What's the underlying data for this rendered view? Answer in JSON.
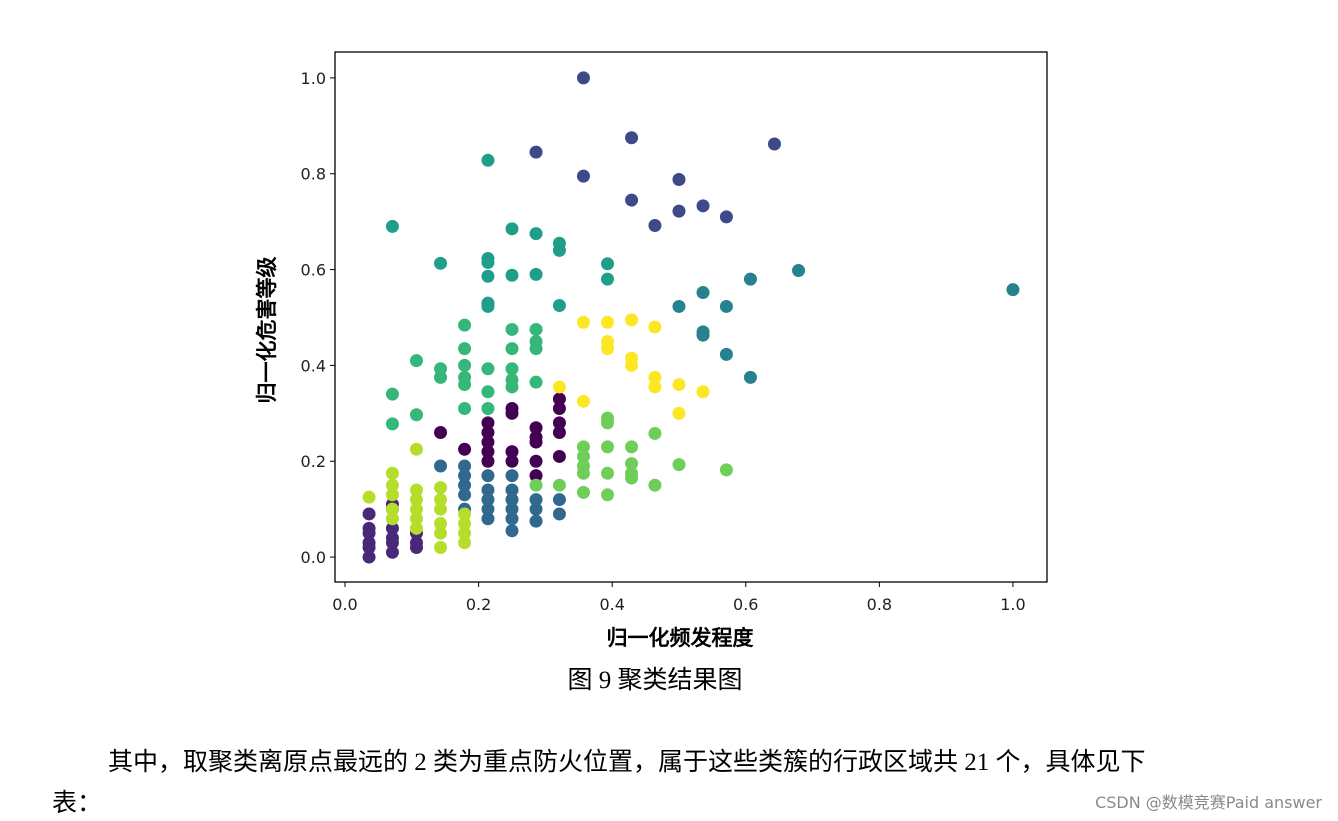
{
  "chart_data": {
    "type": "scatter",
    "xlabel": "归一化频发程度",
    "ylabel": "归一化危害等级",
    "xlim": [
      -0.015,
      1.051
    ],
    "ylim": [
      -0.052,
      1.054
    ],
    "xticks": [
      {
        "value": 0,
        "label": "0.0"
      },
      0.2,
      0.4,
      0.6,
      0.8,
      {
        "value": 1,
        "label": "1.0"
      }
    ],
    "yticks": [
      {
        "value": 0,
        "label": "0.0"
      },
      0.2,
      0.4,
      0.6,
      0.8,
      {
        "value": 1,
        "label": "1.0"
      }
    ],
    "series": [
      {
        "color": "#440154",
        "x": [
          0.143,
          0.179,
          0.214,
          0.214,
          0.214,
          0.214,
          0.214,
          0.25,
          0.25,
          0.25,
          0.25,
          0.286,
          0.286,
          0.286,
          0.286,
          0.286,
          0.321,
          0.321,
          0.321,
          0.321,
          0.321
        ],
        "values": [
          0.26,
          0.225,
          0.28,
          0.26,
          0.24,
          0.22,
          0.2,
          0.31,
          0.3,
          0.22,
          0.2,
          0.27,
          0.25,
          0.24,
          0.2,
          0.17,
          0.33,
          0.31,
          0.28,
          0.26,
          0.21
        ]
      },
      {
        "color": "#482878",
        "x": [
          0.036,
          0.036,
          0.036,
          0.036,
          0.036,
          0.036,
          0.071,
          0.071,
          0.071,
          0.071,
          0.071,
          0.071,
          0.107,
          0.107,
          0.107
        ],
        "values": [
          0.0,
          0.02,
          0.03,
          0.05,
          0.06,
          0.09,
          0.01,
          0.03,
          0.04,
          0.06,
          0.1,
          0.11,
          0.02,
          0.03,
          0.05
        ]
      },
      {
        "color": "#3e4989",
        "x": [
          0.357,
          0.286,
          0.357,
          0.429,
          0.429,
          0.464,
          0.5,
          0.5,
          0.536,
          0.571,
          0.643
        ],
        "values": [
          1.0,
          0.845,
          0.795,
          0.875,
          0.745,
          0.692,
          0.788,
          0.722,
          0.733,
          0.71,
          0.862
        ]
      },
      {
        "color": "#31688e",
        "x": [
          0.143,
          0.179,
          0.179,
          0.179,
          0.179,
          0.179,
          0.214,
          0.214,
          0.214,
          0.214,
          0.214,
          0.25,
          0.25,
          0.25,
          0.25,
          0.25,
          0.25,
          0.286,
          0.286,
          0.286,
          0.321,
          0.321
        ],
        "values": [
          0.19,
          0.19,
          0.17,
          0.15,
          0.13,
          0.1,
          0.17,
          0.14,
          0.12,
          0.1,
          0.08,
          0.17,
          0.14,
          0.12,
          0.1,
          0.08,
          0.055,
          0.12,
          0.1,
          0.075,
          0.12,
          0.09
        ]
      },
      {
        "color": "#26828e",
        "x": [
          0.5,
          0.536,
          0.536,
          0.536,
          0.571,
          0.571,
          0.607,
          0.607,
          0.679,
          1.0
        ],
        "values": [
          0.523,
          0.552,
          0.47,
          0.463,
          0.523,
          0.423,
          0.58,
          0.375,
          0.598,
          0.558
        ]
      },
      {
        "color": "#1f9e89",
        "x": [
          0.071,
          0.143,
          0.214,
          0.214,
          0.214,
          0.214,
          0.214,
          0.214,
          0.25,
          0.25,
          0.286,
          0.286,
          0.321,
          0.321,
          0.321,
          0.393,
          0.393
        ],
        "values": [
          0.69,
          0.613,
          0.828,
          0.623,
          0.615,
          0.586,
          0.53,
          0.523,
          0.685,
          0.588,
          0.675,
          0.59,
          0.655,
          0.64,
          0.525,
          0.612,
          0.58
        ]
      },
      {
        "color": "#35b779",
        "x": [
          0.071,
          0.071,
          0.107,
          0.107,
          0.143,
          0.143,
          0.179,
          0.179,
          0.179,
          0.179,
          0.179,
          0.179,
          0.214,
          0.214,
          0.214,
          0.25,
          0.25,
          0.25,
          0.25,
          0.25,
          0.286,
          0.286,
          0.286,
          0.286
        ],
        "values": [
          0.34,
          0.278,
          0.41,
          0.297,
          0.393,
          0.375,
          0.484,
          0.435,
          0.4,
          0.375,
          0.36,
          0.31,
          0.393,
          0.345,
          0.31,
          0.475,
          0.435,
          0.393,
          0.37,
          0.355,
          0.475,
          0.45,
          0.435,
          0.365
        ]
      },
      {
        "color": "#6ece58",
        "x": [
          0.286,
          0.321,
          0.357,
          0.357,
          0.357,
          0.357,
          0.357,
          0.393,
          0.393,
          0.393,
          0.393,
          0.393,
          0.429,
          0.429,
          0.429,
          0.429,
          0.464,
          0.464,
          0.5,
          0.571
        ],
        "values": [
          0.15,
          0.15,
          0.23,
          0.21,
          0.19,
          0.175,
          0.135,
          0.29,
          0.28,
          0.23,
          0.175,
          0.13,
          0.23,
          0.195,
          0.175,
          0.165,
          0.258,
          0.15,
          0.193,
          0.182
        ]
      },
      {
        "color": "#b5de2b",
        "x": [
          0.036,
          0.071,
          0.071,
          0.071,
          0.071,
          0.071,
          0.107,
          0.107,
          0.107,
          0.107,
          0.107,
          0.107,
          0.143,
          0.143,
          0.143,
          0.143,
          0.143,
          0.143,
          0.179,
          0.179,
          0.179,
          0.179
        ],
        "values": [
          0.125,
          0.175,
          0.15,
          0.13,
          0.1,
          0.08,
          0.225,
          0.14,
          0.12,
          0.1,
          0.08,
          0.06,
          0.145,
          0.12,
          0.1,
          0.07,
          0.05,
          0.02,
          0.09,
          0.07,
          0.05,
          0.03
        ]
      },
      {
        "color": "#fde725",
        "x": [
          0.321,
          0.357,
          0.357,
          0.393,
          0.393,
          0.393,
          0.429,
          0.429,
          0.429,
          0.464,
          0.464,
          0.464,
          0.5,
          0.5,
          0.536
        ],
        "values": [
          0.355,
          0.49,
          0.325,
          0.49,
          0.45,
          0.435,
          0.495,
          0.415,
          0.4,
          0.48,
          0.375,
          0.355,
          0.36,
          0.3,
          0.345
        ]
      }
    ]
  },
  "caption": "图 9  聚类结果图",
  "paragraph": [
    "其中，取聚类离原点最远的 2 类为重点防火位置，属于这些类簇的行政区域共 21 个，具体见下",
    "表："
  ],
  "watermark": "CSDN @数模竞赛Paid answer"
}
